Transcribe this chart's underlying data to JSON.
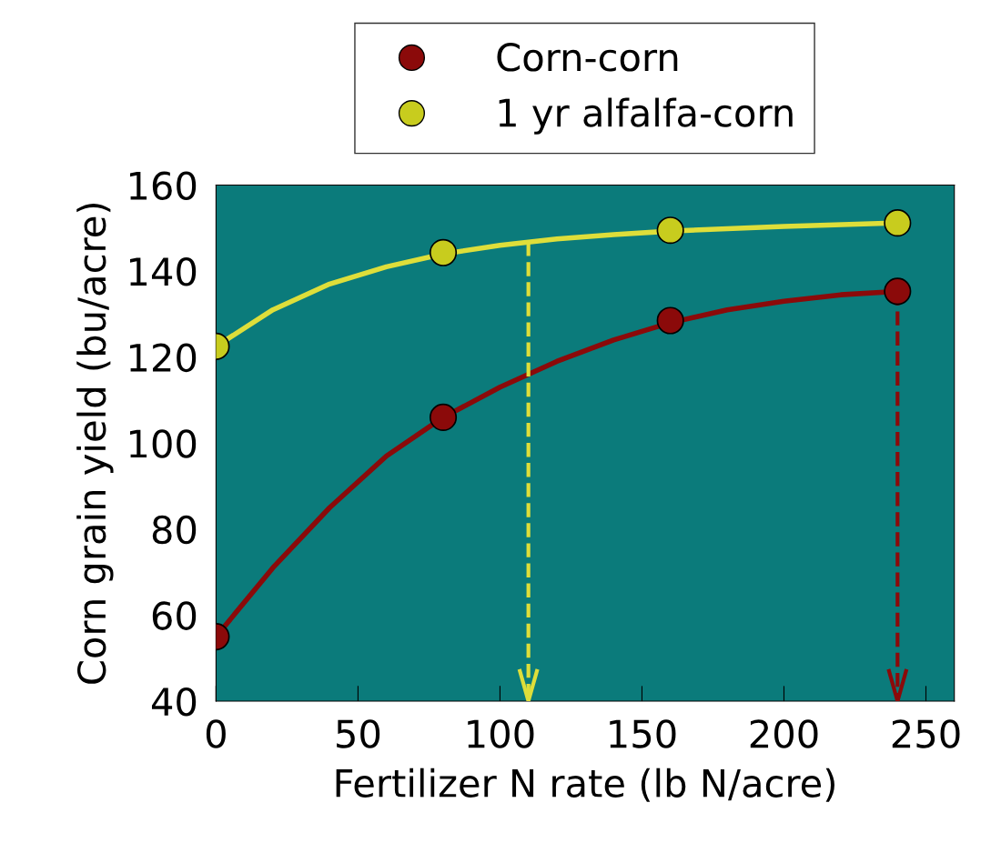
{
  "chart_data": {
    "type": "scatter",
    "xlabel": "Fertilizer N rate (lb N/acre)",
    "ylabel": "Corn grain yield (bu/acre)",
    "x": [
      0,
      80,
      160,
      240
    ],
    "series": [
      {
        "name": "Corn-corn",
        "color": "#8b0a0a",
        "values": [
          55,
          106,
          128.5,
          135.3
        ]
      },
      {
        "name": "1 yr alfalfa-corn",
        "color": "#c8cc1e",
        "values": [
          122.5,
          144.3,
          149.5,
          151.2
        ]
      },
      {
        "type": "line",
        "marker": "none",
        "color": "#8b0a0a",
        "x": [
          0,
          20,
          40,
          60,
          80,
          100,
          120,
          140,
          160,
          180,
          200,
          220,
          240
        ],
        "values": [
          55,
          71,
          85,
          97,
          106,
          113,
          119,
          124,
          128,
          131,
          133,
          134.5,
          135.3
        ]
      },
      {
        "type": "line",
        "marker": "none",
        "color": "#dede3a",
        "x": [
          0,
          20,
          40,
          60,
          80,
          100,
          120,
          140,
          160,
          200,
          240
        ],
        "values": [
          122.5,
          131,
          137,
          141,
          144,
          146,
          147.5,
          148.5,
          149.3,
          150.4,
          151.2
        ]
      }
    ],
    "ref_lines": [
      {
        "axis": "x",
        "value": 110,
        "color": "#dede3a",
        "line_style": "dashed"
      },
      {
        "axis": "x",
        "value": 240,
        "color": "#8b0a0a",
        "line_style": "dashed"
      }
    ],
    "xlim": [
      0,
      260
    ],
    "xticks": [
      0,
      50,
      100,
      150,
      200,
      250
    ],
    "ylim": [
      40,
      160
    ],
    "yticks": [
      40,
      60,
      80,
      100,
      120,
      140,
      160
    ],
    "marker": "circle",
    "legend": "top",
    "grid": false
  }
}
